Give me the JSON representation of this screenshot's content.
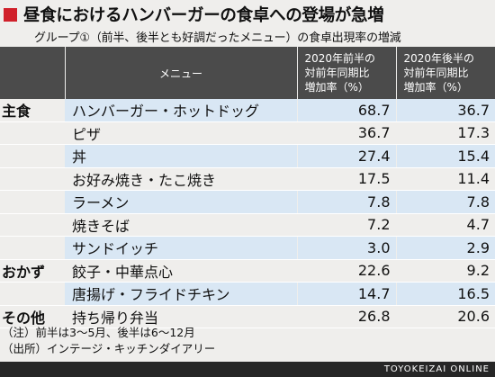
{
  "title": "昼食におけるハンバーガーの食卓への登場が急増",
  "subtitle": "グループ①（前半、後半とも好調だったメニュー）の食卓出現率の増減",
  "colors": {
    "accent": "#d0202a",
    "header_bg": "#4b4b4b",
    "row_alt": "#d9e7f4",
    "background": "#efeeec"
  },
  "chart_data": {
    "type": "table",
    "columns": [
      "",
      "メニュー",
      [
        "2020年前半の",
        "対前年同期比",
        "増加率（%）"
      ],
      [
        "2020年後半の",
        "対前年同期比",
        "増加率（%）"
      ]
    ],
    "rows": [
      {
        "category": "主食",
        "menu": "ハンバーガー・ホットドッグ",
        "first_half": "68.7",
        "second_half": "36.7"
      },
      {
        "category": "",
        "menu": "ピザ",
        "first_half": "36.7",
        "second_half": "17.3"
      },
      {
        "category": "",
        "menu": "丼",
        "first_half": "27.4",
        "second_half": "15.4"
      },
      {
        "category": "",
        "menu": "お好み焼き・たこ焼き",
        "first_half": "17.5",
        "second_half": "11.4"
      },
      {
        "category": "",
        "menu": "ラーメン",
        "first_half": "7.8",
        "second_half": "7.8"
      },
      {
        "category": "",
        "menu": "焼きそば",
        "first_half": "7.2",
        "second_half": "4.7"
      },
      {
        "category": "",
        "menu": "サンドイッチ",
        "first_half": "3.0",
        "second_half": "2.9"
      },
      {
        "category": "おかず",
        "menu": "餃子・中華点心",
        "first_half": "22.6",
        "second_half": "9.2"
      },
      {
        "category": "",
        "menu": "唐揚げ・フライドチキン",
        "first_half": "14.7",
        "second_half": "16.5"
      },
      {
        "category": "その他",
        "menu": "持ち帰り弁当",
        "first_half": "26.8",
        "second_half": "20.6"
      }
    ]
  },
  "notes": [
    "（注）前半は3〜5月、後半は6〜12月",
    "（出所）インテージ・キッチンダイアリー"
  ],
  "brand": "TOYOKEIZAI ONLINE"
}
